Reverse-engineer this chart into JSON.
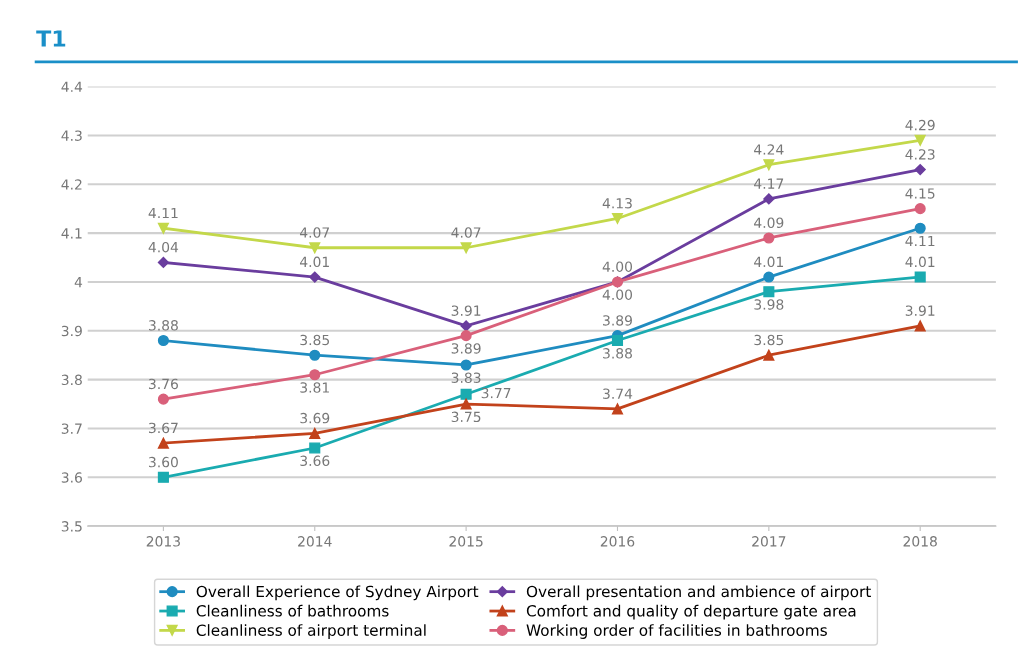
{
  "chart_data": {
    "type": "line",
    "title": "T1",
    "categories": [
      "2013",
      "2014",
      "2015",
      "2016",
      "2017",
      "2018"
    ],
    "series": [
      {
        "name": "Overall Experience of Sydney Airport",
        "color": "#1f8cc0",
        "marker": "circle",
        "values": [
          3.88,
          3.85,
          3.83,
          3.89,
          4.01,
          4.11
        ],
        "value_labels": [
          "3.88",
          "3.85",
          "3.83",
          "3.89",
          "4.01",
          "4.11"
        ]
      },
      {
        "name": "Overall presentation and ambience of airport",
        "color": "#6a3d9e",
        "marker": "diamond",
        "values": [
          4.04,
          4.01,
          3.91,
          4.0,
          4.17,
          4.23
        ],
        "value_labels": [
          "4.04",
          "4.01",
          "3.91",
          "4.00",
          "4.17",
          "4.23"
        ]
      },
      {
        "name": "Cleanliness of bathrooms",
        "color": "#1aabb0",
        "marker": "square",
        "values": [
          3.6,
          3.66,
          3.77,
          3.88,
          3.98,
          4.01
        ],
        "value_labels": [
          "3.60",
          "3.66",
          "3.77",
          "3.88",
          "3.98",
          "4.01"
        ]
      },
      {
        "name": "Comfort and quality of departure gate area",
        "color": "#c2421b",
        "marker": "triangle",
        "values": [
          3.67,
          3.69,
          3.75,
          3.74,
          3.85,
          3.91
        ],
        "value_labels": [
          "3.67",
          "3.69",
          "3.75",
          "3.74",
          "3.85",
          "3.91"
        ]
      },
      {
        "name": "Cleanliness of airport terminal",
        "color": "#c3d84a",
        "marker": "triangle_down",
        "values": [
          4.11,
          4.07,
          4.07,
          4.13,
          4.24,
          4.29
        ],
        "value_labels": [
          "4.11",
          "4.07",
          "4.07",
          "4.13",
          "4.24",
          "4.29"
        ]
      },
      {
        "name": "Working order of facilities in bathrooms",
        "color": "#d9607a",
        "marker": "circle",
        "values": [
          3.76,
          3.81,
          3.89,
          4.0,
          4.09,
          4.15
        ],
        "value_labels": [
          "3.76",
          "3.81",
          "3.89",
          "4.00",
          "4.09",
          "4.15"
        ]
      }
    ],
    "ylim": [
      3.5,
      4.4
    ],
    "yticks": [
      3.5,
      3.6,
      3.7,
      3.8,
      3.9,
      4,
      4.1,
      4.2,
      4.3,
      4.4
    ],
    "grid": "y",
    "legend": "bottom",
    "line_style": "solid"
  }
}
